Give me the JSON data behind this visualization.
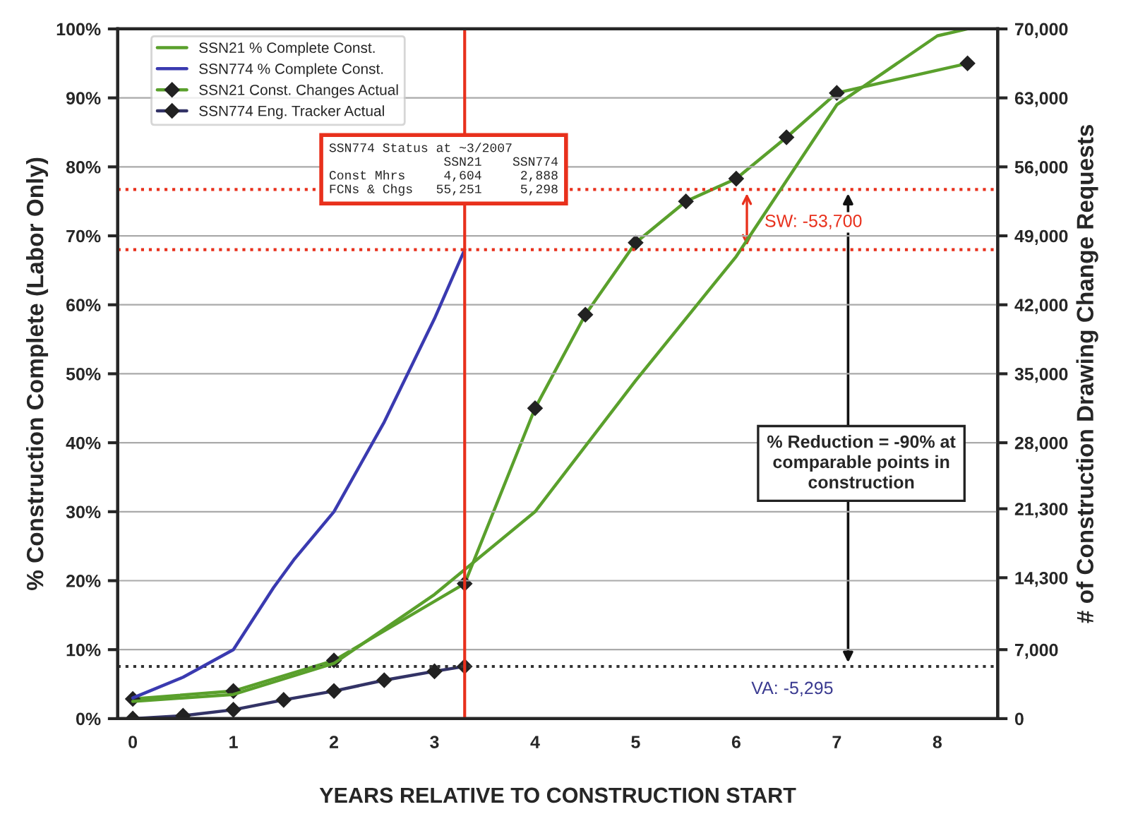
{
  "chart_data": {
    "type": "line",
    "xlabel": "YEARS RELATIVE TO CONSTRUCTION START",
    "ylabel": "% Construction Complete (Labor Only)",
    "y2label": "# of Construction Drawing Change Requests",
    "xlim": [
      -0.15,
      8.6
    ],
    "xticks": [
      0,
      1,
      2,
      3,
      4,
      5,
      6,
      7,
      8
    ],
    "ylim": [
      0,
      100
    ],
    "yticks": [
      {
        "value": 0,
        "label": "0%"
      },
      {
        "value": 10,
        "label": "10%"
      },
      {
        "value": 20,
        "label": "20%"
      },
      {
        "value": 30,
        "label": "30%"
      },
      {
        "value": 40,
        "label": "40%"
      },
      {
        "value": 50,
        "label": "50%"
      },
      {
        "value": 60,
        "label": "60%"
      },
      {
        "value": 70,
        "label": "70%"
      },
      {
        "value": 80,
        "label": "80%"
      },
      {
        "value": 90,
        "label": "90%"
      },
      {
        "value": 100,
        "label": "100%"
      }
    ],
    "y2lim": [
      0,
      70000
    ],
    "y2ticks": [
      0,
      {
        "value": 7000,
        "label": "7,000"
      },
      {
        "value": 14300,
        "label": "14,300"
      },
      {
        "value": 21300,
        "label": "21,300"
      },
      {
        "value": 28000,
        "label": "28,000"
      },
      {
        "value": 35000,
        "label": "35,000"
      },
      {
        "value": 42000,
        "label": "42,000"
      },
      {
        "value": 49000,
        "label": "49,000"
      },
      {
        "value": 56000,
        "label": "56,000"
      },
      {
        "value": 63000,
        "label": "63,000"
      },
      {
        "value": 70000,
        "label": "70,000"
      }
    ],
    "grid": "y",
    "legend": "top left",
    "line_style": "solid",
    "series": [
      {
        "name": "SSN21 % Complete Const.",
        "color": "#5aa02c",
        "marker": "none",
        "x": [
          0,
          1,
          2,
          3,
          4,
          5,
          6,
          7,
          8,
          8.3
        ],
        "values": [
          2.5,
          3.5,
          8,
          18,
          30,
          49,
          67,
          89,
          99,
          100
        ]
      },
      {
        "name": "SSN774 % Complete Const.",
        "color": "#3a3ab0",
        "marker": "none",
        "x": [
          0,
          0.5,
          1,
          1.4,
          1.6,
          2,
          2.5,
          3,
          3.3
        ],
        "values": [
          3,
          6,
          10,
          19,
          23,
          30,
          43,
          58,
          68
        ]
      },
      {
        "name": "SSN21 Const. Changes Actual",
        "color": "#5aa02c",
        "marker": "diamond",
        "axis": "y2",
        "x": [
          0,
          1,
          2,
          3.3,
          4,
          4.5,
          5,
          5.5,
          6,
          6.5,
          7,
          8.3
        ],
        "values": [
          2000,
          2800,
          5900,
          13700,
          31500,
          41000,
          48300,
          52500,
          54800,
          59000,
          63500,
          66500
        ]
      },
      {
        "name": "SSN774 Eng. Tracker Actual",
        "color": "#333366",
        "marker": "diamond",
        "axis": "y2",
        "x": [
          0,
          0.5,
          1,
          1.5,
          2,
          2.5,
          3,
          3.3
        ],
        "values": [
          0,
          300,
          900,
          1900,
          2800,
          3900,
          4800,
          5300
        ]
      }
    ],
    "ref_lines": [
      {
        "axis": "x",
        "value": 3.3,
        "color": "#e8301c",
        "line_style": "solid"
      },
      {
        "axis": "y",
        "value": 68,
        "color": "#e8301c",
        "line_style": "dotted"
      },
      {
        "axis": "y2",
        "value": 53700,
        "color": "#e8301c",
        "line_style": "dotted"
      },
      {
        "axis": "y2",
        "value": 5295,
        "color": "#333333",
        "line_style": "dotted"
      }
    ],
    "annotations": [
      "SW: -53,700",
      "VA: -5,295",
      "% Reduction = -90% at\ncomparable points in\nconstruction",
      "SSN774 Status at ~3/2007\n               SSN21    SSN774\nConst Mhrs     4,604     2,888\nFCNs & Chgs   55,251     5,298"
    ]
  }
}
